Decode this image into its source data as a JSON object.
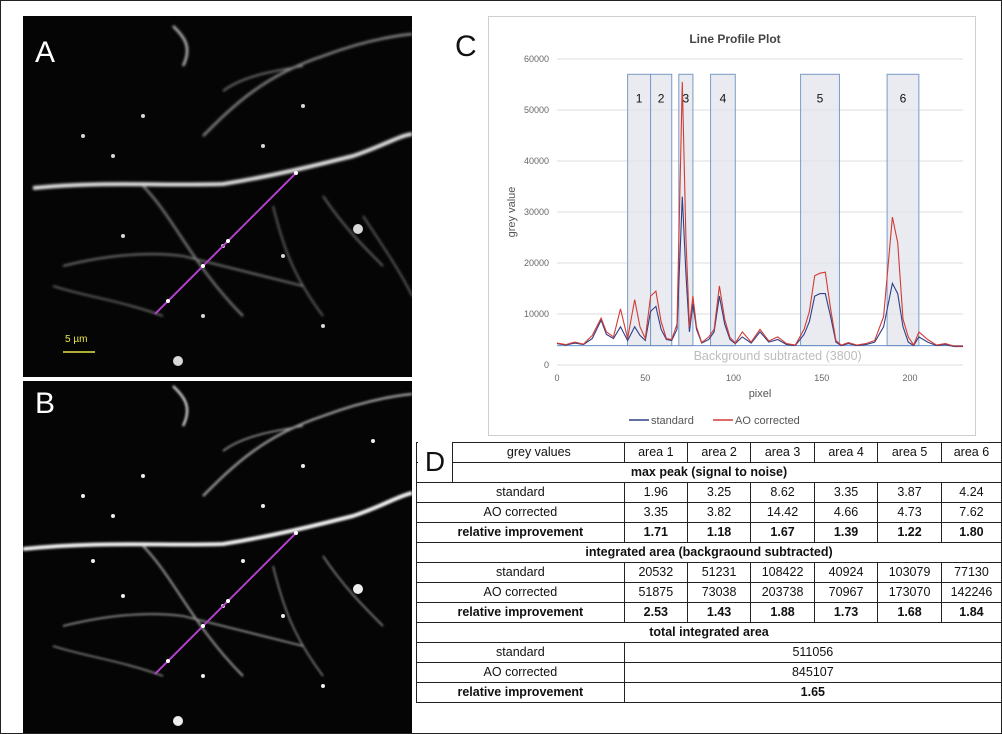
{
  "panels": {
    "a_label": "A",
    "b_label": "B",
    "c_label": "C",
    "d_label": "D",
    "scale_bar_text": "5 µm"
  },
  "chart_data": {
    "type": "line",
    "title": "Line Profile Plot",
    "xlabel": "pixel",
    "ylabel": "grey value",
    "xlim": [
      0,
      230
    ],
    "ylim": [
      0,
      60000
    ],
    "xticks": [
      0,
      50,
      100,
      150,
      200
    ],
    "yticks": [
      0,
      10000,
      20000,
      30000,
      40000,
      50000,
      60000
    ],
    "grid": true,
    "legend_position": "bottom",
    "annotation": "Background subtracted (3800)",
    "background_level": 3800,
    "areas": [
      {
        "label": "1",
        "x0": 40,
        "x1": 53
      },
      {
        "label": "2",
        "x0": 53,
        "x1": 65
      },
      {
        "label": "3",
        "x0": 69,
        "x1": 77
      },
      {
        "label": "4",
        "x0": 87,
        "x1": 101
      },
      {
        "label": "5",
        "x0": 138,
        "x1": 160
      },
      {
        "label": "6",
        "x0": 187,
        "x1": 205
      }
    ],
    "x": [
      0,
      5,
      10,
      15,
      20,
      25,
      28,
      32,
      36,
      40,
      44,
      47,
      50,
      53,
      56,
      59,
      62,
      65,
      68,
      71,
      73,
      75,
      77,
      79,
      82,
      86,
      89,
      92,
      95,
      98,
      101,
      105,
      110,
      115,
      120,
      125,
      130,
      135,
      140,
      143,
      146,
      149,
      152,
      155,
      158,
      161,
      165,
      170,
      175,
      180,
      185,
      190,
      193,
      196,
      199,
      202,
      205,
      210,
      215,
      220,
      225,
      230
    ],
    "series": [
      {
        "name": "standard",
        "color": "#2f3f88",
        "values": [
          4200,
          3900,
          4300,
          4000,
          5200,
          8800,
          6000,
          5200,
          7500,
          4800,
          7500,
          5800,
          4800,
          10500,
          11500,
          7000,
          5000,
          4800,
          7000,
          33000,
          18000,
          6500,
          12000,
          7000,
          4300,
          5000,
          6500,
          13500,
          8000,
          5000,
          4200,
          5500,
          4300,
          6500,
          4500,
          5000,
          4000,
          3800,
          6000,
          8500,
          13500,
          14000,
          14000,
          9500,
          4500,
          3800,
          4200,
          3800,
          4000,
          4500,
          7500,
          16000,
          14000,
          7500,
          4500,
          3800,
          5500,
          4500,
          3800,
          4000,
          3600,
          3600
        ]
      },
      {
        "name": "AO corrected",
        "color": "#d23b35",
        "values": [
          4300,
          4000,
          4500,
          4100,
          5800,
          9200,
          6500,
          5500,
          11000,
          5200,
          12800,
          7500,
          5200,
          13500,
          14500,
          8500,
          5200,
          5000,
          8000,
          55500,
          25000,
          7500,
          13500,
          7500,
          4400,
          5500,
          7000,
          15500,
          9000,
          5400,
          4300,
          6500,
          4500,
          7000,
          4700,
          5500,
          4200,
          3900,
          7000,
          10500,
          17500,
          18000,
          18200,
          11000,
          4800,
          3900,
          4400,
          3900,
          4200,
          4800,
          9500,
          29000,
          24000,
          9000,
          5500,
          3900,
          6500,
          5000,
          3900,
          4200,
          3700,
          3700
        ]
      }
    ]
  },
  "table": {
    "header": [
      "grey values",
      "area 1",
      "area 2",
      "area 3",
      "area 4",
      "area 5",
      "area 6"
    ],
    "section1": "max peak (signal to noise)",
    "s1_rows": [
      {
        "label": "standard",
        "values": [
          "1.96",
          "3.25",
          "8.62",
          "3.35",
          "3.87",
          "4.24"
        ]
      },
      {
        "label": "AO corrected",
        "values": [
          "3.35",
          "3.82",
          "14.42",
          "4.66",
          "4.73",
          "7.62"
        ]
      },
      {
        "label": "relative improvement",
        "values": [
          "1.71",
          "1.18",
          "1.67",
          "1.39",
          "1.22",
          "1.80"
        ]
      }
    ],
    "section2": "integrated area (backgraound subtracted)",
    "s2_rows": [
      {
        "label": "standard",
        "values": [
          "20532",
          "51231",
          "108422",
          "40924",
          "103079",
          "77130"
        ]
      },
      {
        "label": "AO corrected",
        "values": [
          "51875",
          "73038",
          "203738",
          "70967",
          "173070",
          "142246"
        ]
      },
      {
        "label": "relative improvement",
        "values": [
          "2.53",
          "1.43",
          "1.88",
          "1.73",
          "1.68",
          "1.84"
        ]
      }
    ],
    "section3": "total integrated area",
    "s3_rows": [
      {
        "label": "standard",
        "value": "511056"
      },
      {
        "label": "AO corrected",
        "value": "845107"
      },
      {
        "label": "relative improvement",
        "value": "1.65"
      }
    ]
  }
}
